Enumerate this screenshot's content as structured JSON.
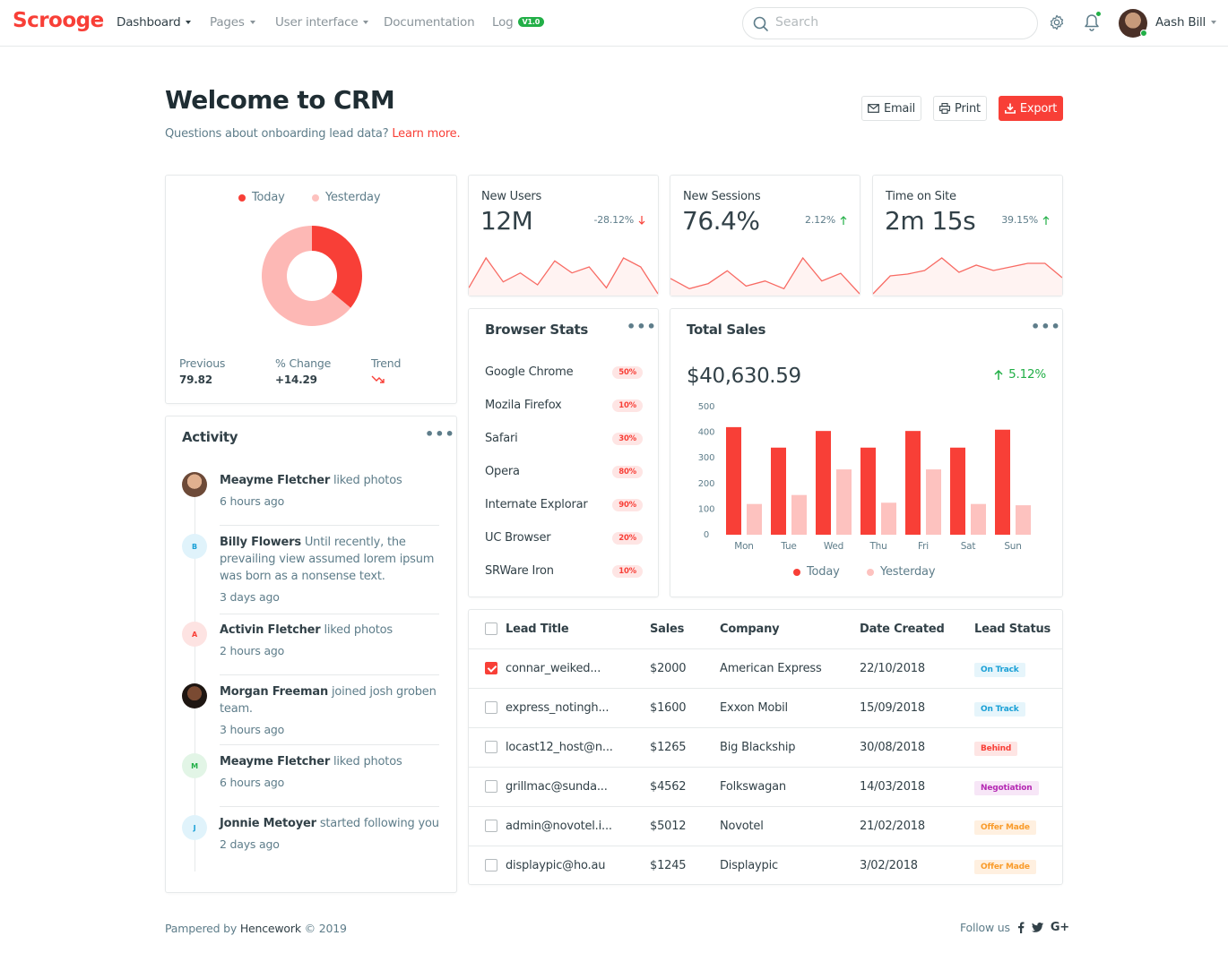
{
  "brand": "Scrooge",
  "nav": {
    "items": [
      {
        "label": "Dashboard"
      },
      {
        "label": "Pages"
      },
      {
        "label": "User interface"
      },
      {
        "label": "Documentation"
      },
      {
        "label": "Log"
      }
    ],
    "log_badge": "V1.0",
    "search_placeholder": "Search",
    "user_name": "Aash Bill"
  },
  "header": {
    "title": "Welcome to CRM",
    "subtitle": "Questions about onboarding lead data?",
    "learn_more": "Learn more.",
    "buttons": {
      "email": "Email",
      "print": "Print",
      "export": "Export"
    }
  },
  "donut": {
    "legend": [
      "Today",
      "Yesterday"
    ],
    "previous_label": "Previous",
    "previous_value": "79.82",
    "change_label": "% Change",
    "change_value": "+14.29",
    "trend_label": "Trend",
    "chart_data": {
      "type": "pie",
      "labels": [
        "Today",
        "Yesterday"
      ],
      "values": [
        36,
        64
      ],
      "colors": [
        "#f83f37",
        "#fdb8b5"
      ]
    }
  },
  "kpis": [
    {
      "title": "New Users",
      "value": "12M",
      "change": "-28.12%",
      "direction": "down",
      "spark": [
        2,
        12,
        4,
        7,
        3,
        11,
        7,
        9,
        2,
        12,
        9,
        0
      ]
    },
    {
      "title": "New Sessions",
      "value": "76.4%",
      "change": "2.12%",
      "direction": "up",
      "spark": [
        6,
        2,
        4,
        9,
        3,
        5,
        2,
        14,
        5,
        8,
        0
      ]
    },
    {
      "title": "Time on Site",
      "value": "2m 15s",
      "change": "39.15%",
      "direction": "up",
      "spark": [
        0,
        10,
        11,
        13,
        20,
        12,
        16,
        13,
        15,
        17,
        17,
        9
      ]
    }
  ],
  "browser_stats": {
    "title": "Browser Stats",
    "rows": [
      {
        "name": "Google Chrome",
        "pct": "50%"
      },
      {
        "name": "Mozila Firefox",
        "pct": "10%"
      },
      {
        "name": "Safari",
        "pct": "30%"
      },
      {
        "name": "Opera",
        "pct": "80%"
      },
      {
        "name": "Internate Explorar",
        "pct": "90%"
      },
      {
        "name": "UC Browser",
        "pct": "20%"
      },
      {
        "name": "SRWare Iron",
        "pct": "10%"
      }
    ]
  },
  "total_sales": {
    "title": "Total Sales",
    "amount": "$40,630.59",
    "change": "5.12%",
    "legend": [
      "Today",
      "Yesterday"
    ],
    "chart_data": {
      "type": "bar",
      "categories": [
        "Mon",
        "Tue",
        "Wed",
        "Thu",
        "Fri",
        "Sat",
        "Sun"
      ],
      "series": [
        {
          "name": "Today",
          "values": [
            420,
            340,
            405,
            340,
            405,
            340,
            410
          ],
          "color": "#f83f37"
        },
        {
          "name": "Yesterday",
          "values": [
            120,
            155,
            255,
            125,
            255,
            120,
            115
          ],
          "color": "#fdc2bf"
        }
      ],
      "yticks": [
        "500",
        "400",
        "300",
        "200",
        "100",
        "0"
      ],
      "ylim": [
        0,
        500
      ]
    }
  },
  "activity": {
    "title": "Activity",
    "items": [
      {
        "name": "Meayme Fletcher",
        "action": "liked photos",
        "time": "6 hours ago",
        "initial": "",
        "type": "photo1"
      },
      {
        "name": "Billy Flowers",
        "action": "Until recently, the prevailing view assumed lorem ipsum was born as a nonsense text.",
        "time": "3 days ago",
        "initial": "B",
        "type": "blue"
      },
      {
        "name": "Activin Fletcher",
        "action": "liked photos",
        "time": "2 hours ago",
        "initial": "A",
        "type": "red"
      },
      {
        "name": "Morgan Freeman",
        "action": "joined josh groben team.",
        "time": "3 hours ago",
        "initial": "",
        "type": "photo2"
      },
      {
        "name": "Meayme Fletcher",
        "action": "liked photos",
        "time": "6 hours ago",
        "initial": "M",
        "type": "green"
      },
      {
        "name": "Jonnie Metoyer",
        "action": "started following you",
        "time": "2 days ago",
        "initial": "J",
        "type": "blue"
      }
    ]
  },
  "leads": {
    "headers": [
      "Lead Title",
      "Sales",
      "Company",
      "Date Created",
      "Lead Status"
    ],
    "rows": [
      {
        "title": "connar_weiked...",
        "sales": "$2000",
        "company": "American Express",
        "date": "22/10/2018",
        "status": "On Track",
        "cls": "st-track",
        "checked": true
      },
      {
        "title": "express_notingh...",
        "sales": "$1600",
        "company": "Exxon Mobil",
        "date": "15/09/2018",
        "status": "On Track",
        "cls": "st-track",
        "checked": false
      },
      {
        "title": "locast12_host@n...",
        "sales": "$1265",
        "company": "Big Blackship",
        "date": "30/08/2018",
        "status": "Behind",
        "cls": "st-behind",
        "checked": false
      },
      {
        "title": "grillmac@sunda...",
        "sales": "$4562",
        "company": "Folkswagan",
        "date": "14/03/2018",
        "status": "Negotiation",
        "cls": "st-neg",
        "checked": false
      },
      {
        "title": "admin@novotel.i...",
        "sales": "$5012",
        "company": "Novotel",
        "date": "21/02/2018",
        "status": "Offer Made",
        "cls": "st-offer",
        "checked": false
      },
      {
        "title": "displaypic@ho.au",
        "sales": "$1245",
        "company": "Displaypic",
        "date": "3/02/2018",
        "status": "Offer Made",
        "cls": "st-offer",
        "checked": false
      }
    ]
  },
  "footer": {
    "pampered": "Pampered by",
    "company": "Hencework",
    "copyright": "© 2019",
    "follow": "Follow us",
    "social": [
      "facebook-icon",
      "twitter-icon",
      "google-plus-icon"
    ]
  },
  "colors": {
    "accent": "#f83f37",
    "accent_light": "#fdc2bf",
    "green": "#22af47"
  }
}
